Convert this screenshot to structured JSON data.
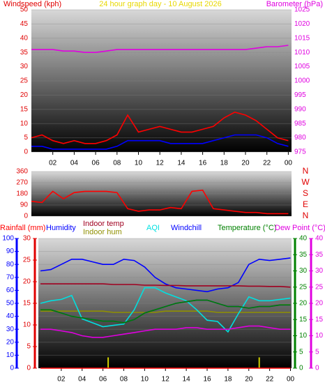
{
  "chart_data": [
    {
      "type": "line",
      "title": "24 hour graph day - 10 August 2026",
      "y_label": "Windspeed (kph)",
      "y2_label": "Barometer (hPa)",
      "x": [
        0,
        1,
        2,
        3,
        4,
        5,
        6,
        7,
        8,
        9,
        10,
        11,
        12,
        13,
        14,
        15,
        16,
        17,
        18,
        19,
        20,
        21,
        22,
        23,
        24
      ],
      "xlim": [
        0,
        24.3
      ],
      "xticks": [
        {
          "value": 2,
          "label": "02"
        },
        {
          "value": 4,
          "label": "04"
        },
        {
          "value": 6,
          "label": "06"
        },
        {
          "value": 8,
          "label": "08"
        },
        10,
        12,
        14,
        16,
        18,
        20,
        22,
        {
          "value": 24,
          "label": "00"
        }
      ],
      "ylim": [
        0,
        50
      ],
      "yticks": [
        0,
        5,
        10,
        15,
        20,
        25,
        30,
        35,
        40,
        45,
        50
      ],
      "y2lim": [
        975,
        1025
      ],
      "y2ticks": [
        975,
        980,
        985,
        990,
        995,
        1000,
        1005,
        1010,
        1015,
        1020,
        1025
      ],
      "ycolor": "#e00000",
      "y2color": "#e000e0",
      "grid": true,
      "series": [
        {
          "color": "#ff0000",
          "values": [
            5,
            6,
            4,
            3,
            4,
            3,
            3,
            4,
            6,
            13,
            7,
            8,
            9,
            8,
            7,
            7,
            8,
            9,
            12,
            14,
            13,
            11,
            8,
            5,
            4
          ]
        },
        {
          "color": "#0000ff",
          "values": [
            2,
            2,
            1,
            1,
            1,
            1,
            1,
            1,
            2,
            4,
            4,
            4,
            4,
            3,
            3,
            3,
            3,
            4,
            5,
            6,
            6,
            6,
            5,
            3,
            2
          ]
        },
        {
          "color": "#e000e0",
          "axis": "y2",
          "values": [
            1011,
            1011,
            1011,
            1010.5,
            1010.5,
            1010,
            1010,
            1010.5,
            1011,
            1011,
            1011,
            1011,
            1011,
            1011,
            1011,
            1011,
            1011,
            1011,
            1011,
            1011,
            1011,
            1011.5,
            1012,
            1012,
            1012.5
          ]
        }
      ]
    },
    {
      "type": "line",
      "x": [
        0,
        1,
        2,
        3,
        4,
        5,
        6,
        7,
        8,
        9,
        10,
        11,
        12,
        13,
        14,
        15,
        16,
        17,
        18,
        19,
        20,
        21,
        22,
        23,
        24
      ],
      "xlim": [
        0,
        24.3
      ],
      "ylim": [
        0,
        360
      ],
      "yticks": [
        0,
        90,
        180,
        270,
        360
      ],
      "y2lim": [
        0,
        360
      ],
      "y2ticks": [
        {
          "value": 360,
          "label": "N"
        },
        {
          "value": 270,
          "label": "W"
        },
        {
          "value": 180,
          "label": "S"
        },
        {
          "value": 90,
          "label": "E"
        },
        {
          "value": 0,
          "label": "N"
        }
      ],
      "ycolor": "#e00000",
      "y2color": "#e00000",
      "grid": true,
      "series": [
        {
          "color": "#ff0000",
          "values": [
            120,
            110,
            200,
            140,
            190,
            200,
            200,
            200,
            190,
            60,
            40,
            50,
            50,
            70,
            60,
            200,
            210,
            60,
            50,
            40,
            30,
            30,
            20,
            20,
            20
          ]
        }
      ]
    },
    {
      "type": "line",
      "x": [
        0,
        1,
        2,
        3,
        4,
        5,
        6,
        7,
        8,
        9,
        10,
        11,
        12,
        13,
        14,
        15,
        16,
        17,
        18,
        19,
        20,
        21,
        22,
        23,
        24
      ],
      "xlim": [
        -0.2,
        24.1
      ],
      "xticks": [
        {
          "value": 2,
          "label": "02"
        },
        {
          "value": 4,
          "label": "04"
        },
        {
          "value": 6,
          "label": "06"
        },
        {
          "value": 8,
          "label": "08"
        },
        10,
        12,
        14,
        16,
        18,
        20,
        22,
        {
          "value": 24,
          "label": "00"
        }
      ],
      "ylim": [
        0,
        100
      ],
      "yticks": [
        0,
        10,
        20,
        30,
        40,
        50,
        60,
        70,
        80,
        90,
        100
      ],
      "y2lim": [
        0,
        30
      ],
      "y2ticks": [
        0,
        5,
        10,
        15,
        20,
        25,
        30
      ],
      "y3lim": [
        0,
        40
      ],
      "y3ticks": [
        0,
        5,
        10,
        15,
        20,
        25,
        30,
        35,
        40
      ],
      "y4lim": [
        0,
        40
      ],
      "y4ticks": [
        0,
        5,
        10,
        15,
        20,
        25,
        30,
        35,
        40
      ],
      "ycolor": "#0000ff",
      "y2color": "#e00000",
      "y3color": "#008000",
      "y4color": "#e000e0",
      "grid": true,
      "bars": {
        "color": "#d0d000",
        "axis": "y2",
        "x": [
          6.5,
          21
        ],
        "values": [
          2.5,
          2.5
        ]
      },
      "series": [
        {
          "name": "Rainfall (mm)",
          "color": "#ff0000",
          "axis": "y2",
          "values": [
            0,
            0,
            0,
            0,
            0,
            0,
            0,
            0,
            0,
            0,
            0,
            0,
            0,
            0,
            0,
            0,
            0,
            0,
            0,
            0,
            0,
            0,
            0,
            0,
            0
          ]
        },
        {
          "name": "Humidity",
          "color": "#0000ff",
          "values": [
            75,
            76,
            80,
            84,
            84,
            82,
            80,
            80,
            84,
            83,
            78,
            70,
            65,
            62,
            61,
            60,
            59,
            61,
            62,
            66,
            80,
            84,
            83,
            84,
            85
          ]
        },
        {
          "name": "Indoor temp",
          "color": "#a00020",
          "axis": "y3",
          "values": [
            26,
            26,
            26,
            26,
            26,
            26,
            26,
            25.8,
            25.8,
            25.8,
            25.6,
            25.6,
            25.5,
            25.5,
            25.4,
            25.4,
            25.4,
            25.4,
            25.4,
            25.4,
            25.3,
            25.3,
            25.2,
            25.2,
            25
          ]
        },
        {
          "name": "Indoor hum",
          "color": "#909000",
          "values": [
            44,
            44,
            44,
            44,
            44,
            44,
            44,
            43,
            43,
            43,
            43,
            43,
            44,
            44,
            44,
            44,
            44,
            43,
            43,
            43,
            43,
            43,
            43,
            43,
            43
          ]
        },
        {
          "name": "AQI",
          "color": "#00e0e0",
          "values": [
            50,
            52,
            53,
            56,
            38,
            35,
            32,
            33,
            34,
            45,
            62,
            62,
            58,
            55,
            52,
            45,
            37,
            36,
            28,
            42,
            55,
            52,
            52,
            53,
            54
          ]
        },
        {
          "name": "Windchill",
          "color": "#0000ff",
          "axis": "y3",
          "values": [
            18,
            18,
            17,
            16,
            15.5,
            15,
            14.5,
            14.5,
            14,
            15,
            17,
            18,
            19,
            20,
            20.5,
            21,
            21,
            20,
            19,
            19,
            18.5,
            19,
            19,
            19.5,
            19.5
          ]
        },
        {
          "name": "Temperature (°C)",
          "color": "#008000",
          "axis": "y3",
          "values": [
            18,
            18,
            17,
            16,
            15.5,
            15,
            14.5,
            14.5,
            14,
            15,
            17,
            18,
            19,
            20,
            20.5,
            21,
            21,
            20,
            19,
            19,
            18.5,
            19,
            19,
            19.5,
            19.5
          ]
        },
        {
          "name": "Dew Point (°C)",
          "color": "#e000e0",
          "axis": "y4",
          "values": [
            12,
            12,
            11.5,
            11,
            10,
            9.5,
            9.5,
            10,
            10.5,
            11,
            11.5,
            12,
            12,
            12,
            12.5,
            12.5,
            12,
            12,
            12,
            12.5,
            13,
            13,
            12.5,
            12,
            12
          ]
        }
      ]
    }
  ]
}
